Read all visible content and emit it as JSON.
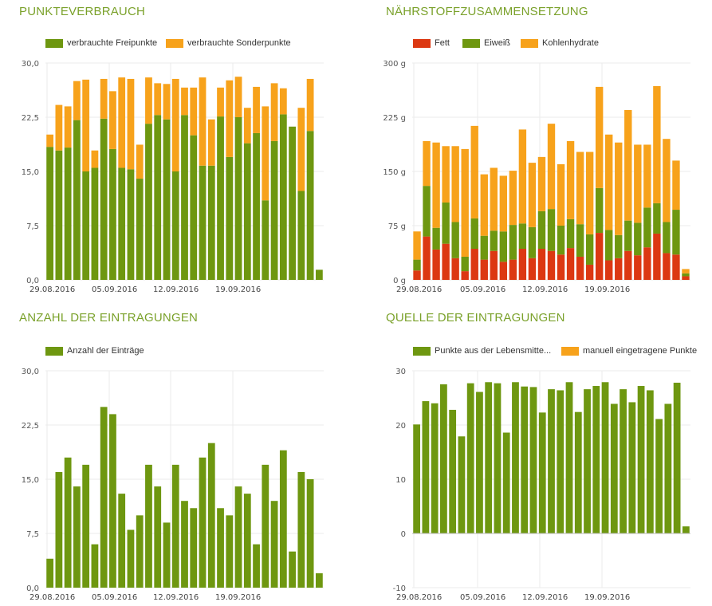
{
  "colors": {
    "green": "#6e9710",
    "orange": "#f7a21b",
    "red": "#dc3812",
    "title": "#7aa12a",
    "grid": "#ebebeb"
  },
  "chart_data": [
    {
      "id": "punkteverbrauch",
      "type": "bar",
      "stacked": true,
      "title": "PUNKTEVERBRAUCH",
      "yticks": [
        "0,0",
        "7,5",
        "15,0",
        "22,5",
        "30,0"
      ],
      "ylim": [
        0,
        30
      ],
      "xticks": [
        "29.08.2016",
        "05.09.2016",
        "12.09.2016",
        "19.09.2016"
      ],
      "legend_position": "top-left",
      "series": [
        {
          "name": "verbrauchte Freipunkte",
          "color": "#6e9710",
          "values": [
            18.4,
            17.9,
            18.3,
            22.1,
            15.0,
            15.5,
            22.3,
            18.1,
            15.5,
            15.3,
            14.0,
            21.6,
            22.8,
            22.2,
            15.0,
            22.8,
            20.0,
            15.8,
            15.8,
            22.6,
            17.0,
            22.5,
            18.9,
            20.3,
            11.0,
            19.2,
            22.9,
            21.2,
            12.3,
            20.6,
            1.4
          ]
        },
        {
          "name": "verbrauchte Sonderpunkte",
          "color": "#f7a21b",
          "values": [
            1.7,
            6.3,
            5.7,
            5.4,
            12.7,
            2.4,
            5.5,
            8.0,
            12.5,
            12.5,
            4.7,
            6.4,
            4.4,
            4.9,
            12.8,
            3.8,
            6.6,
            12.2,
            6.4,
            4.0,
            10.6,
            5.6,
            4.9,
            6.4,
            13.0,
            8.0,
            3.6,
            0.0,
            11.5,
            7.2,
            0.0
          ]
        }
      ]
    },
    {
      "id": "naehrstoff",
      "type": "bar",
      "stacked": true,
      "title": "NÄHRSTOFFZUSAMMENSETZUNG",
      "yticks": [
        "0 g",
        "75 g",
        "150 g",
        "225 g",
        "300 g"
      ],
      "ylim": [
        0,
        300
      ],
      "xticks": [
        "29.08.2016",
        "05.09.2016",
        "12.09.2016",
        "19.09.2016"
      ],
      "legend_position": "top-left",
      "series": [
        {
          "name": "Fett",
          "color": "#dc3812",
          "values": [
            13,
            60,
            42,
            50,
            30,
            12,
            43,
            28,
            40,
            25,
            28,
            43,
            30,
            43,
            40,
            35,
            44,
            32,
            21,
            65,
            27,
            30,
            40,
            34,
            45,
            64,
            37,
            35,
            5
          ]
        },
        {
          "name": "Eiweiß",
          "color": "#6e9710",
          "values": [
            15,
            70,
            30,
            57,
            50,
            20,
            42,
            33,
            28,
            42,
            48,
            35,
            43,
            52,
            58,
            40,
            40,
            45,
            42,
            62,
            42,
            32,
            42,
            45,
            55,
            42,
            43,
            62,
            4
          ]
        },
        {
          "name": "Kohlenhydrate",
          "color": "#f7a21b",
          "values": [
            39,
            62,
            118,
            78,
            105,
            149,
            128,
            85,
            87,
            77,
            75,
            130,
            89,
            75,
            118,
            85,
            108,
            100,
            114,
            140,
            132,
            128,
            153,
            108,
            87,
            162,
            115,
            68,
            6
          ]
        }
      ]
    },
    {
      "id": "anzahl",
      "type": "bar",
      "title": "ANZAHL DER EINTRAGUNGEN",
      "yticks": [
        "0,0",
        "7,5",
        "15,0",
        "22,5",
        "30,0"
      ],
      "ylim": [
        0,
        30
      ],
      "xticks": [
        "29.08.2016",
        "05.09.2016",
        "12.09.2016",
        "19.09.2016"
      ],
      "legend_position": "top-left",
      "series": [
        {
          "name": "Anzahl der Einträge",
          "color": "#6e9710",
          "values": [
            4,
            16,
            18,
            14,
            17,
            6,
            25,
            24,
            13,
            8,
            10,
            17,
            14,
            9,
            17,
            12,
            11,
            18,
            20,
            11,
            10,
            14,
            13,
            6,
            17,
            12,
            19,
            5,
            16,
            15,
            2
          ]
        }
      ]
    },
    {
      "id": "quelle",
      "type": "bar",
      "stacked": true,
      "title": "QUELLE DER EINTRAGUNGEN",
      "yticks": [
        "-10",
        "0",
        "10",
        "20",
        "30"
      ],
      "ylim": [
        -10,
        30
      ],
      "xticks": [
        "29.08.2016",
        "05.09.2016",
        "12.09.2016",
        "19.09.2016"
      ],
      "legend_position": "top-left",
      "series": [
        {
          "name": "Punkte aus der Lebensmitte...",
          "color": "#6e9710",
          "values": [
            20.1,
            24.4,
            24.0,
            27.5,
            22.8,
            17.9,
            27.7,
            26.1,
            27.9,
            27.7,
            18.6,
            27.9,
            27.1,
            27.0,
            22.3,
            26.6,
            26.4,
            27.9,
            22.4,
            26.6,
            27.2,
            27.9,
            23.9,
            26.6,
            24.2,
            27.2,
            26.4,
            21.1,
            23.9,
            27.8,
            1.3
          ]
        },
        {
          "name": "manuell eingetragene Punkte",
          "color": "#f7a21b",
          "values": [
            0,
            0,
            0,
            0,
            0,
            0,
            0,
            0,
            0,
            0,
            0,
            0,
            0,
            0,
            0,
            0,
            0,
            0,
            0,
            0,
            0,
            0,
            0,
            0,
            0,
            0,
            0,
            0,
            0,
            0,
            0
          ]
        }
      ]
    }
  ]
}
